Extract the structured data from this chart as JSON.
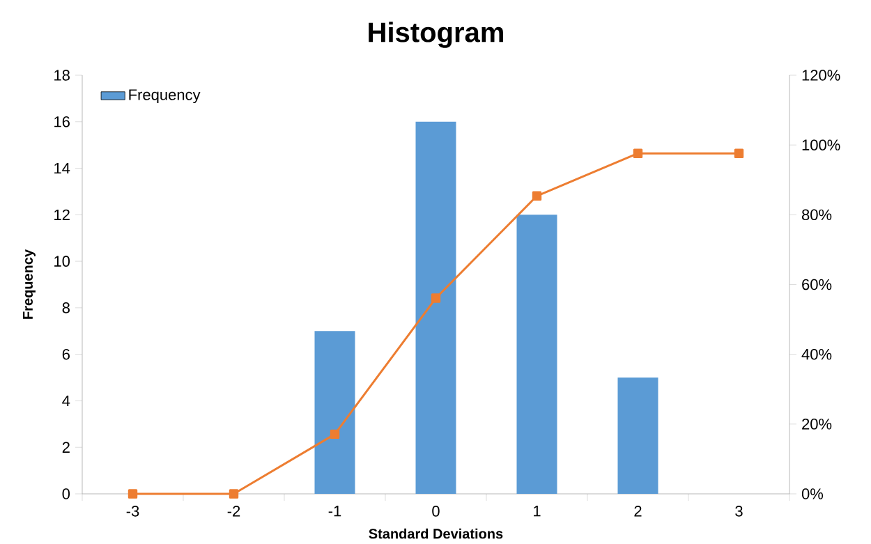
{
  "chart_data": {
    "type": "bar",
    "title": "Histogram",
    "xlabel": "Standard Deviations",
    "ylabel": "Frequency",
    "categories": [
      "-3",
      "-2",
      "-1",
      "0",
      "1",
      "2",
      "3"
    ],
    "series": [
      {
        "name": "Frequency",
        "color": "#5b9bd5",
        "values": [
          0,
          0,
          7,
          16,
          12,
          5,
          0
        ]
      },
      {
        "type": "line",
        "axis": "y2",
        "color": "#ed7d31",
        "marker": "square",
        "line_style": "solid",
        "values": [
          0,
          0,
          17.1,
          56.1,
          85.4,
          97.6,
          97.6
        ]
      }
    ],
    "ylim": [
      0,
      18
    ],
    "yticks": [
      0,
      2,
      4,
      6,
      8,
      10,
      12,
      14,
      16,
      18
    ],
    "y2lim": [
      0,
      120
    ],
    "y2ticks": [
      {
        "value": 0,
        "label": "0%"
      },
      {
        "value": 20,
        "label": "20%"
      },
      {
        "value": 40,
        "label": "40%"
      },
      {
        "value": 60,
        "label": "60%"
      },
      {
        "value": 80,
        "label": "80%"
      },
      {
        "value": 100,
        "label": "100%"
      },
      {
        "value": 120,
        "label": "120%"
      }
    ],
    "legend": "top left"
  }
}
